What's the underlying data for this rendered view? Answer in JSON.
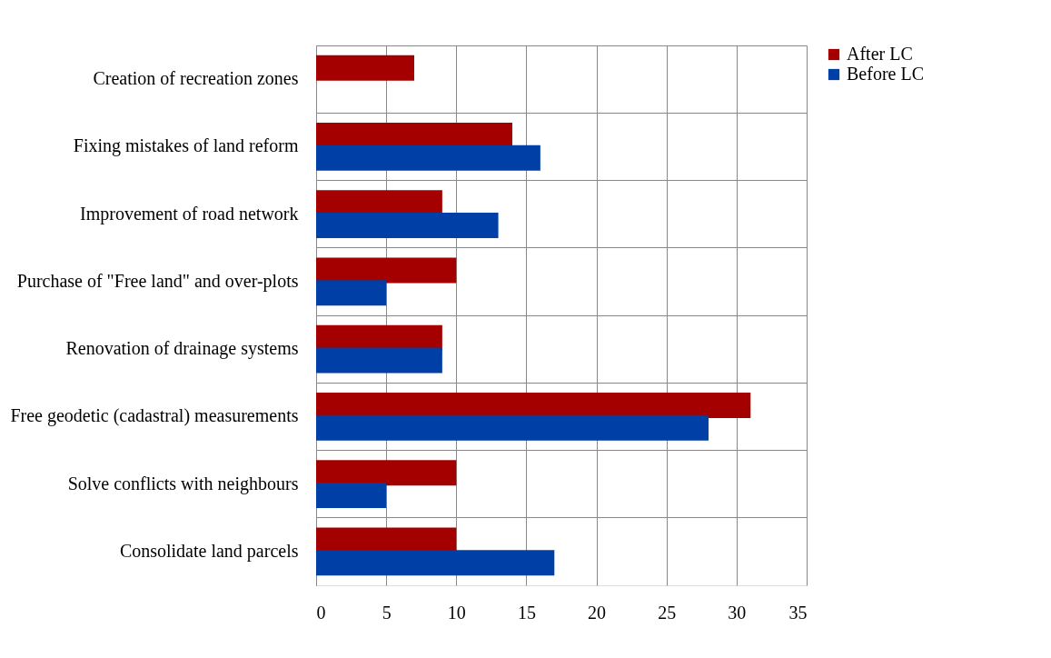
{
  "chart_data": {
    "type": "bar",
    "orientation": "horizontal",
    "categories": [
      "Creation of recreation zones",
      "Fixing mistakes of land reform",
      "Improvement of road network",
      "Purchase of \"Free land\" and over-plots",
      "Renovation of drainage systems",
      "Free geodetic (cadastral) measurements",
      "Solve conflicts with neighbours",
      "Consolidate land parcels"
    ],
    "series": [
      {
        "name": "After LC",
        "color": "#a50000",
        "values": [
          7,
          14,
          9,
          10,
          9,
          31,
          10,
          10
        ]
      },
      {
        "name": "Before LC",
        "color": "#003fa5",
        "values": [
          null,
          16,
          13,
          5,
          9,
          28,
          5,
          17
        ]
      }
    ],
    "xlim": [
      0,
      35
    ],
    "xticks": [
      0,
      5,
      10,
      15,
      20,
      25,
      30,
      35
    ],
    "grid": true,
    "legend": "right"
  }
}
